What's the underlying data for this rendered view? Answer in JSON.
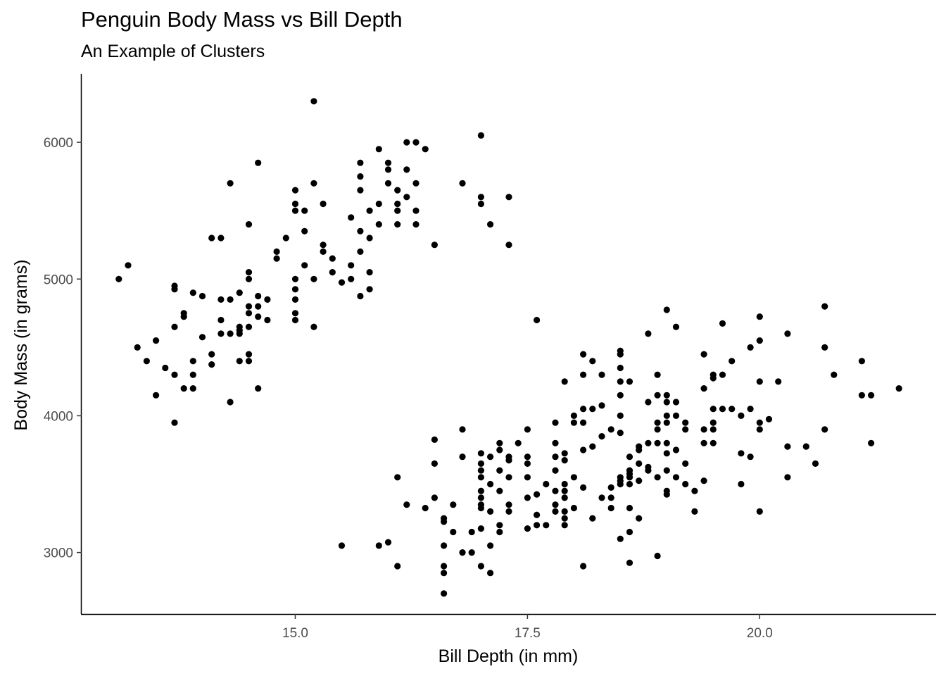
{
  "chart_data": {
    "type": "scatter",
    "title": "Penguin Body Mass vs Bill Depth",
    "subtitle": "An Example of Clusters",
    "xlabel": "Bill Depth (in mm)",
    "ylabel": "Body Mass (in grams)",
    "xlim": [
      12.7,
      21.9
    ],
    "ylim": [
      2550,
      6500
    ],
    "xticks": [
      15.0,
      17.5,
      20.0
    ],
    "xtick_labels": [
      "15.0",
      "17.5",
      "20.0"
    ],
    "yticks": [
      3000,
      4000,
      5000,
      6000
    ],
    "ytick_labels": [
      "3000",
      "4000",
      "5000",
      "6000"
    ],
    "grid": false,
    "point_color": "#000000",
    "points": [
      [
        13.1,
        5000
      ],
      [
        13.3,
        4500
      ],
      [
        13.2,
        5100
      ],
      [
        13.4,
        4400
      ],
      [
        13.5,
        4550
      ],
      [
        13.5,
        4150
      ],
      [
        13.6,
        4350
      ],
      [
        13.7,
        4300
      ],
      [
        13.7,
        4650
      ],
      [
        13.7,
        4950
      ],
      [
        13.7,
        4925
      ],
      [
        13.7,
        3950
      ],
      [
        13.8,
        4200
      ],
      [
        13.8,
        4725
      ],
      [
        13.8,
        4750
      ],
      [
        13.9,
        4200
      ],
      [
        13.9,
        4300
      ],
      [
        13.9,
        4400
      ],
      [
        13.9,
        4900
      ],
      [
        14.0,
        4875
      ],
      [
        14.0,
        4575
      ],
      [
        14.1,
        4450
      ],
      [
        14.1,
        4375
      ],
      [
        14.1,
        5300
      ],
      [
        14.2,
        5300
      ],
      [
        14.2,
        4850
      ],
      [
        14.2,
        4700
      ],
      [
        14.2,
        4600
      ],
      [
        14.3,
        4600
      ],
      [
        14.3,
        4850
      ],
      [
        14.3,
        5700
      ],
      [
        14.3,
        4100
      ],
      [
        14.4,
        4600
      ],
      [
        14.4,
        4650
      ],
      [
        14.4,
        4625
      ],
      [
        14.4,
        4900
      ],
      [
        14.4,
        4400
      ],
      [
        14.5,
        4800
      ],
      [
        14.5,
        4750
      ],
      [
        14.5,
        5000
      ],
      [
        14.5,
        5050
      ],
      [
        14.5,
        4450
      ],
      [
        14.5,
        4400
      ],
      [
        14.5,
        4650
      ],
      [
        14.5,
        5400
      ],
      [
        14.6,
        4875
      ],
      [
        14.6,
        4800
      ],
      [
        14.6,
        4200
      ],
      [
        14.6,
        5850
      ],
      [
        14.6,
        4725
      ],
      [
        14.7,
        4850
      ],
      [
        14.7,
        4700
      ],
      [
        14.8,
        5200
      ],
      [
        14.8,
        5150
      ],
      [
        14.9,
        5300
      ],
      [
        15.0,
        5650
      ],
      [
        15.0,
        5550
      ],
      [
        15.0,
        5500
      ],
      [
        15.0,
        5000
      ],
      [
        15.0,
        4925
      ],
      [
        15.0,
        4850
      ],
      [
        15.0,
        4750
      ],
      [
        15.0,
        4700
      ],
      [
        15.1,
        5500
      ],
      [
        15.1,
        5350
      ],
      [
        15.1,
        5100
      ],
      [
        15.2,
        6300
      ],
      [
        15.2,
        5700
      ],
      [
        15.2,
        5000
      ],
      [
        15.2,
        4650
      ],
      [
        15.3,
        5550
      ],
      [
        15.3,
        5250
      ],
      [
        15.3,
        5200
      ],
      [
        15.4,
        5050
      ],
      [
        15.4,
        5150
      ],
      [
        15.5,
        4975
      ],
      [
        15.6,
        5450
      ],
      [
        15.6,
        5100
      ],
      [
        15.6,
        5000
      ],
      [
        15.7,
        5850
      ],
      [
        15.7,
        5750
      ],
      [
        15.7,
        5650
      ],
      [
        15.7,
        5350
      ],
      [
        15.7,
        5200
      ],
      [
        15.7,
        4875
      ],
      [
        15.8,
        5500
      ],
      [
        15.8,
        5050
      ],
      [
        15.8,
        4925
      ],
      [
        15.8,
        5300
      ],
      [
        15.9,
        5950
      ],
      [
        15.9,
        5550
      ],
      [
        15.9,
        5400
      ],
      [
        16.0,
        5850
      ],
      [
        16.0,
        5800
      ],
      [
        16.0,
        5700
      ],
      [
        16.1,
        5650
      ],
      [
        16.1,
        5550
      ],
      [
        16.1,
        5500
      ],
      [
        16.1,
        5400
      ],
      [
        16.2,
        6000
      ],
      [
        16.2,
        5800
      ],
      [
        16.2,
        5600
      ],
      [
        16.3,
        6000
      ],
      [
        16.3,
        5700
      ],
      [
        16.3,
        5500
      ],
      [
        16.3,
        5400
      ],
      [
        16.4,
        5950
      ],
      [
        16.5,
        5250
      ],
      [
        16.8,
        5700
      ],
      [
        17.0,
        6050
      ],
      [
        17.0,
        5600
      ],
      [
        17.0,
        5550
      ],
      [
        17.1,
        5400
      ],
      [
        17.3,
        5600
      ],
      [
        17.3,
        5250
      ],
      [
        17.6,
        4700
      ],
      [
        15.5,
        3050
      ],
      [
        15.9,
        3050
      ],
      [
        16.0,
        3075
      ],
      [
        16.1,
        3550
      ],
      [
        16.1,
        2900
      ],
      [
        16.2,
        3350
      ],
      [
        16.4,
        3325
      ],
      [
        16.5,
        3825
      ],
      [
        16.5,
        3650
      ],
      [
        16.5,
        3400
      ],
      [
        16.6,
        3250
      ],
      [
        16.6,
        3225
      ],
      [
        16.6,
        3050
      ],
      [
        16.6,
        2900
      ],
      [
        16.6,
        2850
      ],
      [
        16.6,
        2700
      ],
      [
        16.7,
        3350
      ],
      [
        16.7,
        3150
      ],
      [
        16.8,
        3000
      ],
      [
        16.8,
        3900
      ],
      [
        16.8,
        3700
      ],
      [
        16.9,
        3150
      ],
      [
        16.9,
        3000
      ],
      [
        17.0,
        3725
      ],
      [
        17.0,
        3650
      ],
      [
        17.0,
        3600
      ],
      [
        17.0,
        3550
      ],
      [
        17.0,
        3450
      ],
      [
        17.0,
        3400
      ],
      [
        17.0,
        3350
      ],
      [
        17.0,
        3325
      ],
      [
        17.0,
        3175
      ],
      [
        17.0,
        2900
      ],
      [
        17.1,
        3700
      ],
      [
        17.1,
        3500
      ],
      [
        17.1,
        3300
      ],
      [
        17.1,
        3050
      ],
      [
        17.1,
        2850
      ],
      [
        17.2,
        3800
      ],
      [
        17.2,
        3750
      ],
      [
        17.2,
        3600
      ],
      [
        17.2,
        3450
      ],
      [
        17.2,
        3200
      ],
      [
        17.2,
        3150
      ],
      [
        17.3,
        3700
      ],
      [
        17.3,
        3675
      ],
      [
        17.3,
        3550
      ],
      [
        17.3,
        3350
      ],
      [
        17.3,
        3300
      ],
      [
        17.4,
        3800
      ],
      [
        17.5,
        3900
      ],
      [
        17.5,
        3700
      ],
      [
        17.5,
        3650
      ],
      [
        17.5,
        3550
      ],
      [
        17.5,
        3400
      ],
      [
        17.5,
        3175
      ],
      [
        17.6,
        3425
      ],
      [
        17.6,
        3275
      ],
      [
        17.6,
        3200
      ],
      [
        17.7,
        3500
      ],
      [
        17.7,
        3200
      ],
      [
        17.8,
        3950
      ],
      [
        17.8,
        3800
      ],
      [
        17.8,
        3700
      ],
      [
        17.8,
        3450
      ],
      [
        17.8,
        3350
      ],
      [
        17.8,
        3300
      ],
      [
        17.8,
        3600
      ],
      [
        17.9,
        3725
      ],
      [
        17.9,
        3675
      ],
      [
        17.9,
        3500
      ],
      [
        17.9,
        3450
      ],
      [
        17.9,
        3400
      ],
      [
        17.9,
        3300
      ],
      [
        17.9,
        3250
      ],
      [
        17.9,
        3200
      ],
      [
        17.9,
        4250
      ],
      [
        18.0,
        4000
      ],
      [
        18.0,
        3950
      ],
      [
        18.0,
        3550
      ],
      [
        18.0,
        3325
      ],
      [
        18.1,
        4450
      ],
      [
        18.1,
        4300
      ],
      [
        18.1,
        4050
      ],
      [
        18.1,
        3950
      ],
      [
        18.1,
        3750
      ],
      [
        18.1,
        3475
      ],
      [
        18.1,
        2900
      ],
      [
        18.2,
        4400
      ],
      [
        18.2,
        4050
      ],
      [
        18.2,
        3775
      ],
      [
        18.2,
        3250
      ],
      [
        18.3,
        4075
      ],
      [
        18.3,
        3850
      ],
      [
        18.3,
        4300
      ],
      [
        18.3,
        3400
      ],
      [
        18.4,
        3900
      ],
      [
        18.4,
        3475
      ],
      [
        18.4,
        3400
      ],
      [
        18.4,
        3325
      ],
      [
        18.5,
        4475
      ],
      [
        18.5,
        4450
      ],
      [
        18.5,
        4350
      ],
      [
        18.5,
        4250
      ],
      [
        18.5,
        4150
      ],
      [
        18.5,
        4000
      ],
      [
        18.5,
        3875
      ],
      [
        18.5,
        3550
      ],
      [
        18.5,
        3525
      ],
      [
        18.5,
        3500
      ],
      [
        18.5,
        3100
      ],
      [
        18.6,
        4250
      ],
      [
        18.6,
        3700
      ],
      [
        18.6,
        3600
      ],
      [
        18.6,
        3575
      ],
      [
        18.6,
        3550
      ],
      [
        18.6,
        3500
      ],
      [
        18.6,
        3325
      ],
      [
        18.6,
        3150
      ],
      [
        18.6,
        2925
      ],
      [
        18.7,
        3775
      ],
      [
        18.7,
        3750
      ],
      [
        18.7,
        3650
      ],
      [
        18.7,
        3525
      ],
      [
        18.7,
        3250
      ],
      [
        18.8,
        4600
      ],
      [
        18.8,
        4100
      ],
      [
        18.8,
        3800
      ],
      [
        18.8,
        3625
      ],
      [
        18.8,
        3600
      ],
      [
        18.9,
        4300
      ],
      [
        18.9,
        4150
      ],
      [
        18.9,
        3950
      ],
      [
        18.9,
        3900
      ],
      [
        18.9,
        3800
      ],
      [
        18.9,
        3550
      ],
      [
        18.9,
        2975
      ],
      [
        19.0,
        4775
      ],
      [
        19.0,
        4150
      ],
      [
        19.0,
        4100
      ],
      [
        19.0,
        4000
      ],
      [
        19.0,
        3950
      ],
      [
        19.0,
        3800
      ],
      [
        19.0,
        3725
      ],
      [
        19.0,
        3600
      ],
      [
        19.0,
        3450
      ],
      [
        19.0,
        3425
      ],
      [
        19.1,
        4650
      ],
      [
        19.1,
        4100
      ],
      [
        19.1,
        4000
      ],
      [
        19.1,
        3750
      ],
      [
        19.1,
        3550
      ],
      [
        19.2,
        3950
      ],
      [
        19.2,
        3900
      ],
      [
        19.2,
        3650
      ],
      [
        19.2,
        3500
      ],
      [
        19.3,
        3450
      ],
      [
        19.3,
        3300
      ],
      [
        19.4,
        4450
      ],
      [
        19.4,
        4200
      ],
      [
        19.4,
        3900
      ],
      [
        19.4,
        3800
      ],
      [
        19.4,
        3525
      ],
      [
        19.5,
        4300
      ],
      [
        19.5,
        4275
      ],
      [
        19.5,
        4050
      ],
      [
        19.5,
        3950
      ],
      [
        19.5,
        3800
      ],
      [
        19.5,
        3900
      ],
      [
        19.6,
        4675
      ],
      [
        19.6,
        4300
      ],
      [
        19.6,
        4050
      ],
      [
        19.7,
        4400
      ],
      [
        19.7,
        4050
      ],
      [
        19.8,
        4000
      ],
      [
        19.8,
        3725
      ],
      [
        19.8,
        3500
      ],
      [
        19.9,
        4500
      ],
      [
        19.9,
        4050
      ],
      [
        19.9,
        3700
      ],
      [
        20.0,
        4725
      ],
      [
        20.0,
        4550
      ],
      [
        20.0,
        4250
      ],
      [
        20.0,
        3950
      ],
      [
        20.0,
        3900
      ],
      [
        20.0,
        3300
      ],
      [
        20.1,
        3975
      ],
      [
        20.2,
        4250
      ],
      [
        20.3,
        4600
      ],
      [
        20.3,
        3775
      ],
      [
        20.3,
        3550
      ],
      [
        20.5,
        3775
      ],
      [
        20.6,
        3650
      ],
      [
        20.7,
        4800
      ],
      [
        20.7,
        4500
      ],
      [
        20.7,
        3900
      ],
      [
        20.8,
        4300
      ],
      [
        21.1,
        4400
      ],
      [
        21.1,
        4150
      ],
      [
        21.2,
        4150
      ],
      [
        21.2,
        3800
      ],
      [
        21.5,
        4200
      ]
    ]
  }
}
